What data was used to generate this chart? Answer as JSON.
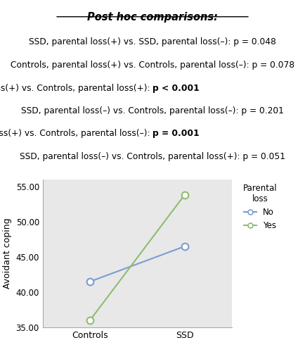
{
  "title": "Post hoc comparisons:",
  "x_labels": [
    "Controls",
    "SSD"
  ],
  "x_positions": [
    0,
    1
  ],
  "line_no": {
    "x": [
      0,
      1
    ],
    "y": [
      41.5,
      46.5
    ],
    "color": "#7b9cd4",
    "label": "No"
  },
  "line_yes": {
    "x": [
      0,
      1
    ],
    "y": [
      36.0,
      53.8
    ],
    "color": "#8fbc6f",
    "label": "Yes"
  },
  "ylim": [
    35.0,
    56.0
  ],
  "yticks": [
    35.0,
    40.0,
    45.0,
    50.0,
    55.0
  ],
  "ylabel": "Avoidant coping",
  "legend_title": "Parental\nloss",
  "plot_bg": "#e8e8e8",
  "marker_size": 7,
  "linewidth": 1.5,
  "annotation_lines": [
    {
      "normal": "SSD, parental loss(+) vs. SSD, parental loss(–): p = 0.048",
      "bold": ""
    },
    {
      "normal": "Controls, parental loss(+) vs. Controls, parental loss(–): p = 0.078",
      "bold": ""
    },
    {
      "normal": "SSD, parental loss(+) vs. Controls, parental loss(+): ",
      "bold": "p < 0.001"
    },
    {
      "normal": "SSD, parental loss(–) vs. Controls, parental loss(–): p = 0.201",
      "bold": ""
    },
    {
      "normal": "SSD, parental loss(+) vs. Controls, parental loss(–): ",
      "bold": "p = 0.001"
    },
    {
      "normal": "SSD, parental loss(–) vs. Controls, parental loss(+): p = 0.051",
      "bold": ""
    }
  ]
}
